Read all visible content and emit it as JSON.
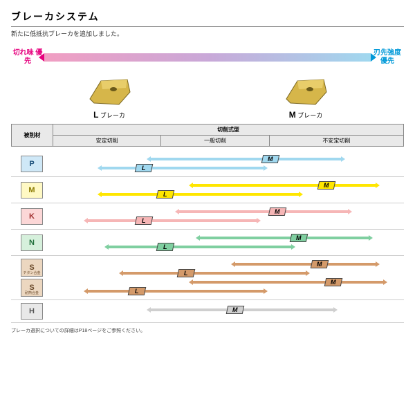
{
  "title": "ブレーカシステム",
  "subtitle": "新たに低抵抗ブレーカを追加しました。",
  "gradient": {
    "left": "切れ味\n優先",
    "right": "刃先強度\n優先"
  },
  "inserts": {
    "L_label_bold": "L",
    "L_label_txt": " ブレーカ",
    "M_label_bold": "M",
    "M_label_txt": " ブレーカ"
  },
  "header": {
    "material": "被削材",
    "cut": "切削式型",
    "c1": "安定切削",
    "c2": "一般切削",
    "c3": "不安定切削"
  },
  "materials": [
    {
      "code": "P",
      "bg": "#cfe8f7",
      "fg": "#1a4f7a",
      "sub": "",
      "bars": [
        {
          "type": "M",
          "color": "#a0d8ef",
          "start": 28,
          "end": 82,
          "badge": 62
        },
        {
          "type": "L",
          "color": "#a0d8ef",
          "start": 14,
          "end": 60,
          "badge": 26
        }
      ]
    },
    {
      "code": "M",
      "bg": "#fff9c4",
      "fg": "#8a7a00",
      "sub": "",
      "bars": [
        {
          "type": "M",
          "color": "#ffe600",
          "start": 40,
          "end": 92,
          "badge": 78
        },
        {
          "type": "L",
          "color": "#ffe600",
          "start": 14,
          "end": 70,
          "badge": 32
        }
      ]
    },
    {
      "code": "K",
      "bg": "#fcd7d7",
      "fg": "#a03030",
      "sub": "",
      "bars": [
        {
          "type": "M",
          "color": "#f6b6b6",
          "start": 36,
          "end": 84,
          "badge": 64
        },
        {
          "type": "L",
          "color": "#f6b6b6",
          "start": 10,
          "end": 58,
          "badge": 26
        }
      ]
    },
    {
      "code": "N",
      "bg": "#d6f0dc",
      "fg": "#1f6f3a",
      "sub": "",
      "bars": [
        {
          "type": "M",
          "color": "#7fcfa0",
          "start": 42,
          "end": 90,
          "badge": 70
        },
        {
          "type": "L",
          "color": "#7fcfa0",
          "start": 16,
          "end": 68,
          "badge": 32
        }
      ]
    },
    {
      "code": "S",
      "bg": "#ecd7c0",
      "fg": "#6b4a2a",
      "sub": "チタン合金",
      "code2": "S",
      "sub2": "耐熱合金",
      "bars": [
        {
          "type": "M",
          "color": "#d49a6a",
          "start": 52,
          "end": 92,
          "badge": 76
        },
        {
          "type": "L",
          "color": "#d49a6a",
          "start": 20,
          "end": 72,
          "badge": 38
        },
        {
          "type": "M",
          "color": "#d49a6a",
          "start": 40,
          "end": 94,
          "badge": 80
        },
        {
          "type": "L",
          "color": "#d49a6a",
          "start": 10,
          "end": 60,
          "badge": 24
        }
      ]
    },
    {
      "code": "H",
      "bg": "#e8e8e8",
      "fg": "#555",
      "sub": "",
      "bars": [
        {
          "type": "M",
          "color": "#cfcfcf",
          "start": 28,
          "end": 80,
          "badge": 52
        }
      ]
    }
  ],
  "footnote": "ブレーカ選択についての詳細はP18ページをご参照ください。"
}
